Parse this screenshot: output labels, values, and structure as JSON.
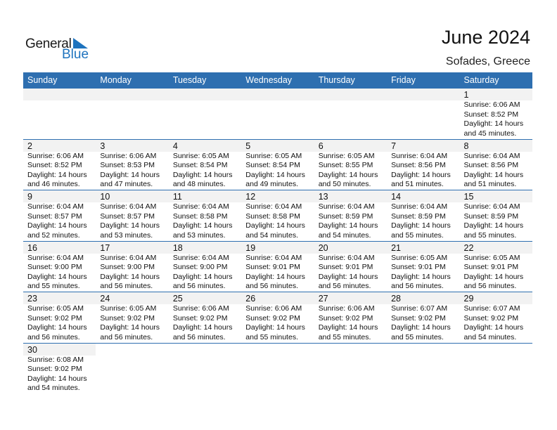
{
  "logo": {
    "word1": "General",
    "word2": "Blue"
  },
  "title": "June 2024",
  "location": "Sofades, Greece",
  "colors": {
    "header": "#2e6fb0",
    "band": "#f2f2f2",
    "brand": "#1e73be"
  },
  "weekdays": [
    "Sunday",
    "Monday",
    "Tuesday",
    "Wednesday",
    "Thursday",
    "Friday",
    "Saturday"
  ],
  "weeks": [
    [
      null,
      null,
      null,
      null,
      null,
      null,
      {
        "day": "1",
        "sunrise": "Sunrise: 6:06 AM",
        "sunset": "Sunset: 8:52 PM",
        "daylight1": "Daylight: 14 hours",
        "daylight2": "and 45 minutes."
      }
    ],
    [
      {
        "day": "2",
        "sunrise": "Sunrise: 6:06 AM",
        "sunset": "Sunset: 8:52 PM",
        "daylight1": "Daylight: 14 hours",
        "daylight2": "and 46 minutes."
      },
      {
        "day": "3",
        "sunrise": "Sunrise: 6:06 AM",
        "sunset": "Sunset: 8:53 PM",
        "daylight1": "Daylight: 14 hours",
        "daylight2": "and 47 minutes."
      },
      {
        "day": "4",
        "sunrise": "Sunrise: 6:05 AM",
        "sunset": "Sunset: 8:54 PM",
        "daylight1": "Daylight: 14 hours",
        "daylight2": "and 48 minutes."
      },
      {
        "day": "5",
        "sunrise": "Sunrise: 6:05 AM",
        "sunset": "Sunset: 8:54 PM",
        "daylight1": "Daylight: 14 hours",
        "daylight2": "and 49 minutes."
      },
      {
        "day": "6",
        "sunrise": "Sunrise: 6:05 AM",
        "sunset": "Sunset: 8:55 PM",
        "daylight1": "Daylight: 14 hours",
        "daylight2": "and 50 minutes."
      },
      {
        "day": "7",
        "sunrise": "Sunrise: 6:04 AM",
        "sunset": "Sunset: 8:56 PM",
        "daylight1": "Daylight: 14 hours",
        "daylight2": "and 51 minutes."
      },
      {
        "day": "8",
        "sunrise": "Sunrise: 6:04 AM",
        "sunset": "Sunset: 8:56 PM",
        "daylight1": "Daylight: 14 hours",
        "daylight2": "and 51 minutes."
      }
    ],
    [
      {
        "day": "9",
        "sunrise": "Sunrise: 6:04 AM",
        "sunset": "Sunset: 8:57 PM",
        "daylight1": "Daylight: 14 hours",
        "daylight2": "and 52 minutes."
      },
      {
        "day": "10",
        "sunrise": "Sunrise: 6:04 AM",
        "sunset": "Sunset: 8:57 PM",
        "daylight1": "Daylight: 14 hours",
        "daylight2": "and 53 minutes."
      },
      {
        "day": "11",
        "sunrise": "Sunrise: 6:04 AM",
        "sunset": "Sunset: 8:58 PM",
        "daylight1": "Daylight: 14 hours",
        "daylight2": "and 53 minutes."
      },
      {
        "day": "12",
        "sunrise": "Sunrise: 6:04 AM",
        "sunset": "Sunset: 8:58 PM",
        "daylight1": "Daylight: 14 hours",
        "daylight2": "and 54 minutes."
      },
      {
        "day": "13",
        "sunrise": "Sunrise: 6:04 AM",
        "sunset": "Sunset: 8:59 PM",
        "daylight1": "Daylight: 14 hours",
        "daylight2": "and 54 minutes."
      },
      {
        "day": "14",
        "sunrise": "Sunrise: 6:04 AM",
        "sunset": "Sunset: 8:59 PM",
        "daylight1": "Daylight: 14 hours",
        "daylight2": "and 55 minutes."
      },
      {
        "day": "15",
        "sunrise": "Sunrise: 6:04 AM",
        "sunset": "Sunset: 8:59 PM",
        "daylight1": "Daylight: 14 hours",
        "daylight2": "and 55 minutes."
      }
    ],
    [
      {
        "day": "16",
        "sunrise": "Sunrise: 6:04 AM",
        "sunset": "Sunset: 9:00 PM",
        "daylight1": "Daylight: 14 hours",
        "daylight2": "and 55 minutes."
      },
      {
        "day": "17",
        "sunrise": "Sunrise: 6:04 AM",
        "sunset": "Sunset: 9:00 PM",
        "daylight1": "Daylight: 14 hours",
        "daylight2": "and 56 minutes."
      },
      {
        "day": "18",
        "sunrise": "Sunrise: 6:04 AM",
        "sunset": "Sunset: 9:00 PM",
        "daylight1": "Daylight: 14 hours",
        "daylight2": "and 56 minutes."
      },
      {
        "day": "19",
        "sunrise": "Sunrise: 6:04 AM",
        "sunset": "Sunset: 9:01 PM",
        "daylight1": "Daylight: 14 hours",
        "daylight2": "and 56 minutes."
      },
      {
        "day": "20",
        "sunrise": "Sunrise: 6:04 AM",
        "sunset": "Sunset: 9:01 PM",
        "daylight1": "Daylight: 14 hours",
        "daylight2": "and 56 minutes."
      },
      {
        "day": "21",
        "sunrise": "Sunrise: 6:05 AM",
        "sunset": "Sunset: 9:01 PM",
        "daylight1": "Daylight: 14 hours",
        "daylight2": "and 56 minutes."
      },
      {
        "day": "22",
        "sunrise": "Sunrise: 6:05 AM",
        "sunset": "Sunset: 9:01 PM",
        "daylight1": "Daylight: 14 hours",
        "daylight2": "and 56 minutes."
      }
    ],
    [
      {
        "day": "23",
        "sunrise": "Sunrise: 6:05 AM",
        "sunset": "Sunset: 9:02 PM",
        "daylight1": "Daylight: 14 hours",
        "daylight2": "and 56 minutes."
      },
      {
        "day": "24",
        "sunrise": "Sunrise: 6:05 AM",
        "sunset": "Sunset: 9:02 PM",
        "daylight1": "Daylight: 14 hours",
        "daylight2": "and 56 minutes."
      },
      {
        "day": "25",
        "sunrise": "Sunrise: 6:06 AM",
        "sunset": "Sunset: 9:02 PM",
        "daylight1": "Daylight: 14 hours",
        "daylight2": "and 56 minutes."
      },
      {
        "day": "26",
        "sunrise": "Sunrise: 6:06 AM",
        "sunset": "Sunset: 9:02 PM",
        "daylight1": "Daylight: 14 hours",
        "daylight2": "and 55 minutes."
      },
      {
        "day": "27",
        "sunrise": "Sunrise: 6:06 AM",
        "sunset": "Sunset: 9:02 PM",
        "daylight1": "Daylight: 14 hours",
        "daylight2": "and 55 minutes."
      },
      {
        "day": "28",
        "sunrise": "Sunrise: 6:07 AM",
        "sunset": "Sunset: 9:02 PM",
        "daylight1": "Daylight: 14 hours",
        "daylight2": "and 55 minutes."
      },
      {
        "day": "29",
        "sunrise": "Sunrise: 6:07 AM",
        "sunset": "Sunset: 9:02 PM",
        "daylight1": "Daylight: 14 hours",
        "daylight2": "and 54 minutes."
      }
    ],
    [
      {
        "day": "30",
        "sunrise": "Sunrise: 6:08 AM",
        "sunset": "Sunset: 9:02 PM",
        "daylight1": "Daylight: 14 hours",
        "daylight2": "and 54 minutes."
      },
      null,
      null,
      null,
      null,
      null,
      null
    ]
  ]
}
